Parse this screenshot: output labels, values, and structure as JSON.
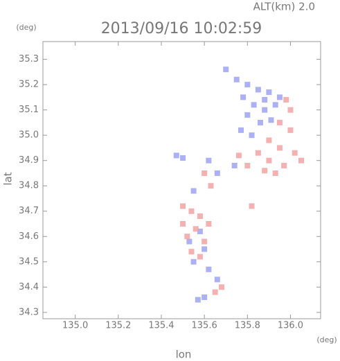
{
  "chart_data": {
    "type": "scatter",
    "title": "2013/09/16 10:02:59",
    "subtitle": "ALT(km) 2.0",
    "y_unit": "(deg)",
    "x_unit": "(deg)",
    "ylabel": "lat",
    "xlabel": "lon",
    "xlim": [
      134.85,
      136.14
    ],
    "ylim": [
      34.275,
      35.37
    ],
    "xticks": [
      {
        "value": 135,
        "label": "135.0"
      },
      135.2,
      135.4,
      135.6,
      135.8,
      {
        "value": 136,
        "label": "136.0"
      }
    ],
    "yticks": [
      34.3,
      34.4,
      34.5,
      34.6,
      34.7,
      34.8,
      34.9,
      {
        "value": 35,
        "label": "35.0"
      },
      35.1,
      35.2,
      35.3
    ],
    "series": [
      {
        "color": "#9ea3f2",
        "x": [
          135.75,
          135.8,
          135.85,
          135.9,
          135.78,
          135.83,
          135.88,
          135.93,
          135.95,
          135.8,
          135.86,
          135.91,
          135.77,
          135.82,
          135.7,
          135.47,
          135.5,
          135.62,
          135.66,
          135.55,
          135.58,
          135.53,
          135.6,
          135.55,
          135.62,
          135.66,
          135.57,
          135.6,
          135.74,
          135.88
        ],
        "values": [
          35.22,
          35.2,
          35.18,
          35.17,
          35.15,
          35.12,
          35.1,
          35.12,
          35.15,
          35.08,
          35.05,
          35.06,
          35.02,
          35.0,
          35.26,
          34.92,
          34.91,
          34.9,
          34.85,
          34.78,
          34.62,
          34.58,
          34.55,
          34.5,
          34.47,
          34.43,
          34.35,
          34.36,
          34.88,
          35.14
        ]
      },
      {
        "color": "#f2a3a3",
        "x": [
          135.95,
          136.0,
          135.9,
          135.95,
          136.02,
          135.85,
          135.9,
          135.97,
          136.05,
          135.88,
          135.93,
          135.8,
          136.0,
          135.98,
          135.5,
          135.54,
          135.58,
          135.5,
          135.56,
          135.62,
          135.52,
          135.6,
          135.54,
          135.58,
          135.65,
          135.68,
          135.63,
          135.76,
          135.82,
          135.6
        ],
        "values": [
          35.05,
          35.02,
          34.98,
          34.95,
          34.93,
          34.93,
          34.9,
          34.88,
          34.9,
          34.86,
          34.85,
          34.88,
          35.1,
          35.14,
          34.72,
          34.7,
          34.68,
          34.65,
          34.63,
          34.65,
          34.6,
          34.58,
          34.54,
          34.52,
          34.38,
          34.4,
          34.8,
          34.92,
          34.72,
          34.85
        ]
      }
    ]
  }
}
